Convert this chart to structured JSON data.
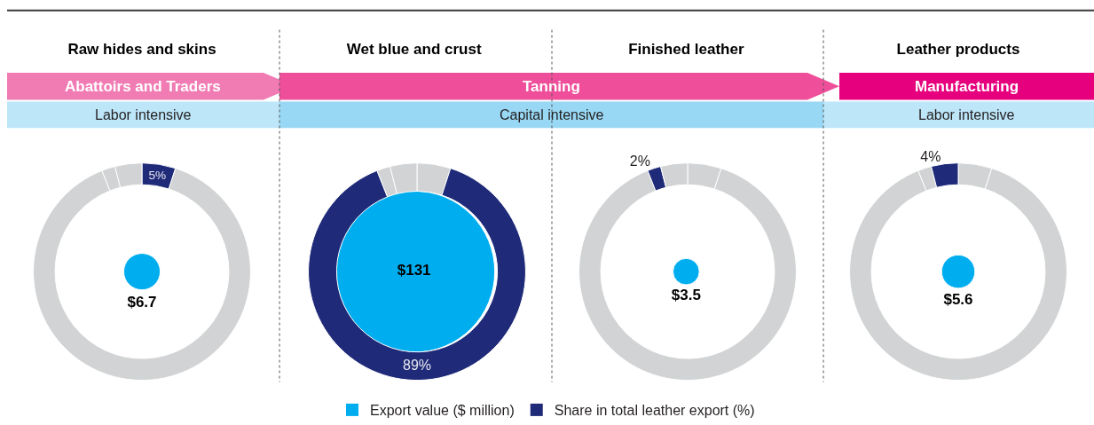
{
  "chart_data": [
    {
      "type": "other",
      "categories": [
        "Raw hides and skins",
        "Wet blue and crust",
        "Finished leather",
        "Leather products"
      ],
      "series": [
        {
          "name": "Export value ($ million)",
          "color": "#00aeef",
          "values": [
            6.7,
            131,
            3.5,
            5.6
          ],
          "value_labels": [
            "$6.7",
            "$131",
            "$3.5",
            "$5.6"
          ]
        }
      ],
      "annotations": [
        "Abattoirs and Traders",
        "Tanning",
        "Manufacturing",
        "Labor intensive",
        "Capital intensive",
        "Labor intensive"
      ],
      "legend": "bottom"
    },
    {
      "type": "donut",
      "categories": [
        "Share in total leather export (%)",
        null,
        null,
        null
      ],
      "values": [
        5,
        89,
        2,
        4
      ],
      "colors": [
        "#1f2a78",
        "#d1d3d4",
        "#d1d3d4",
        "#d1d3d4"
      ],
      "value_labels": [
        "5%",
        null,
        null,
        null
      ],
      "legend": "bottom"
    },
    {
      "type": "donut",
      "categories": [
        null,
        null,
        null,
        null
      ],
      "values": [
        5,
        89,
        2,
        4
      ],
      "colors": [
        "#d1d3d4",
        "#1f2a78",
        "#d1d3d4",
        "#d1d3d4"
      ],
      "value_labels": [
        null,
        "89%",
        null,
        null
      ]
    },
    {
      "type": "donut",
      "categories": [
        null,
        null,
        null,
        null
      ],
      "values": [
        5,
        89,
        2,
        4
      ],
      "colors": [
        "#d1d3d4",
        "#d1d3d4",
        "#1f2a78",
        "#d1d3d4"
      ],
      "value_labels": [
        null,
        null,
        "2%",
        null
      ]
    },
    {
      "type": "donut",
      "categories": [
        null,
        null,
        null,
        null
      ],
      "values": [
        5,
        89,
        2,
        4
      ],
      "colors": [
        "#d1d3d4",
        "#d1d3d4",
        "#d1d3d4",
        "#1f2a78"
      ],
      "value_labels": [
        null,
        null,
        null,
        "4%"
      ]
    }
  ]
}
